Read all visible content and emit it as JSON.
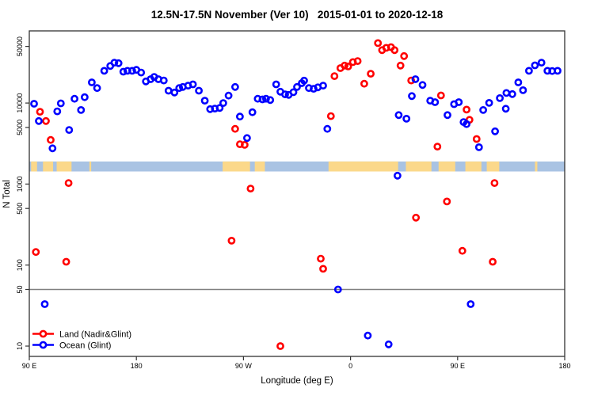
{
  "title": "12.5N-17.5N November (Ver 10)   2015-01-01 to 2020-12-18",
  "legend": {
    "items": [
      {
        "label": "Land (Nadir&Glint)",
        "color": "#ff0000",
        "icon": "open-circle-on-line"
      },
      {
        "label": "Ocean (Glint)",
        "color": "#0000ff",
        "icon": "open-circle-on-line"
      }
    ]
  },
  "colors": {
    "land_series": "#ff0000",
    "ocean_series": "#0000ff",
    "map_ocean": "#a9c3e3",
    "map_land": "#fbd88a",
    "reference_line": "#808080",
    "axis": "#000000"
  },
  "chart_data": {
    "type": "scatter",
    "title": "12.5N-17.5N November (Ver 10)   2015-01-01 to 2020-12-18",
    "xlabel": "Longitude (deg E)",
    "ylabel": "N Total",
    "x_axis": {
      "range_deg_east_continuous": [
        90,
        540
      ],
      "ticks": [
        90,
        180,
        270,
        360,
        450,
        540
      ],
      "tick_labels": [
        "90 E",
        "180",
        "90 W",
        "0",
        "90 E",
        "180"
      ]
    },
    "y_axis": {
      "scale": "log10",
      "range": [
        7.5,
        77000
      ],
      "ticks": [
        10,
        50,
        100,
        500,
        1000,
        5000,
        10000,
        50000
      ],
      "tick_labels": [
        "10",
        "50",
        "100",
        "500",
        "1000",
        "5000",
        "10000",
        "50000"
      ]
    },
    "reference_line_y": 50,
    "grid": "off",
    "legend_position": "bottom-left-inside",
    "map_strip": {
      "description": "thin world-map band at the 12.5N-17.5N latitude zone",
      "value_top": 1900,
      "value_bottom": 1430,
      "land_segments_deg": [
        [
          91.5,
          96.5
        ],
        [
          101.5,
          110
        ],
        [
          113,
          125.5
        ],
        [
          140.5,
          142
        ],
        [
          252.5,
          275.5
        ],
        [
          279.5,
          288
        ],
        [
          341.5,
          400
        ],
        [
          406.5,
          428
        ],
        [
          434,
          448
        ],
        [
          456.5,
          470
        ],
        [
          474.5,
          485
        ],
        [
          515,
          517
        ]
      ]
    },
    "series": [
      {
        "name": "Land (Nadir&Glint)",
        "color": "#ff0000",
        "points": [
          [
            95.5,
            145
          ],
          [
            99,
            7800
          ],
          [
            104,
            6000
          ],
          [
            108,
            3500
          ],
          [
            121,
            110
          ],
          [
            123,
            1030
          ],
          [
            260,
            200
          ],
          [
            263,
            4800
          ],
          [
            267,
            3100
          ],
          [
            271,
            3050
          ],
          [
            276,
            880
          ],
          [
            301,
            10
          ],
          [
            335,
            120
          ],
          [
            337,
            90
          ],
          [
            343.5,
            6900
          ],
          [
            346.5,
            21500
          ],
          [
            351.5,
            27000
          ],
          [
            355,
            29000
          ],
          [
            358,
            28300
          ],
          [
            362,
            32000
          ],
          [
            366,
            33000
          ],
          [
            371.5,
            17300
          ],
          [
            377,
            23000
          ],
          [
            383,
            55000
          ],
          [
            386.5,
            45000
          ],
          [
            390,
            48000
          ],
          [
            394,
            49000
          ],
          [
            397,
            45000
          ],
          [
            402,
            29000
          ],
          [
            405,
            38000
          ],
          [
            411,
            19000
          ],
          [
            415,
            385
          ],
          [
            433,
            2900
          ],
          [
            436,
            12400
          ],
          [
            441,
            610
          ],
          [
            454,
            150
          ],
          [
            457.5,
            8300
          ],
          [
            460,
            6200
          ],
          [
            466,
            3600
          ],
          [
            479.5,
            110
          ],
          [
            481,
            1030
          ]
        ]
      },
      {
        "name": "Ocean (Glint)",
        "color": "#0000ff",
        "points": [
          [
            94,
            9800
          ],
          [
            98,
            6000
          ],
          [
            103,
            33
          ],
          [
            109.5,
            2760
          ],
          [
            113.5,
            7900
          ],
          [
            116.5,
            9900
          ],
          [
            123.5,
            4650
          ],
          [
            128,
            11300
          ],
          [
            133.5,
            8200
          ],
          [
            136.5,
            11800
          ],
          [
            142.5,
            18000
          ],
          [
            147,
            15300
          ],
          [
            153,
            25000
          ],
          [
            158,
            28700
          ],
          [
            161.5,
            31500
          ],
          [
            165,
            31000
          ],
          [
            169,
            24400
          ],
          [
            172.5,
            25000
          ],
          [
            176.5,
            25000
          ],
          [
            180,
            25700
          ],
          [
            184,
            23800
          ],
          [
            188,
            18500
          ],
          [
            192,
            19700
          ],
          [
            195,
            21000
          ],
          [
            198.5,
            19700
          ],
          [
            203,
            19000
          ],
          [
            207,
            14200
          ],
          [
            212,
            13500
          ],
          [
            216,
            15300
          ],
          [
            219,
            15800
          ],
          [
            223.5,
            16400
          ],
          [
            227.5,
            17000
          ],
          [
            232.5,
            14200
          ],
          [
            237.5,
            10700
          ],
          [
            242,
            8400
          ],
          [
            246,
            8550
          ],
          [
            250,
            8700
          ],
          [
            253,
            10000
          ],
          [
            257.5,
            12350
          ],
          [
            263,
            15800
          ],
          [
            267,
            6800
          ],
          [
            273,
            3700
          ],
          [
            277.5,
            7700
          ],
          [
            282,
            11300
          ],
          [
            286,
            11100
          ],
          [
            289,
            11300
          ],
          [
            292.5,
            10900
          ],
          [
            297.5,
            17000
          ],
          [
            301,
            13800
          ],
          [
            305,
            12800
          ],
          [
            308,
            12600
          ],
          [
            312,
            13600
          ],
          [
            315,
            15800
          ],
          [
            319,
            17600
          ],
          [
            321,
            18900
          ],
          [
            325,
            15300
          ],
          [
            329,
            15000
          ],
          [
            332.5,
            15600
          ],
          [
            337,
            16400
          ],
          [
            340.5,
            4800
          ],
          [
            349.5,
            50
          ],
          [
            374.5,
            13.5
          ],
          [
            392,
            10.5
          ],
          [
            399.5,
            1270
          ],
          [
            400.5,
            7100
          ],
          [
            407,
            6400
          ],
          [
            411.5,
            12200
          ],
          [
            414.5,
            19700
          ],
          [
            420.5,
            16700
          ],
          [
            427,
            10700
          ],
          [
            431,
            10250
          ],
          [
            441.5,
            7100
          ],
          [
            447,
            9700
          ],
          [
            451,
            10250
          ],
          [
            455,
            5830
          ],
          [
            457.5,
            5500
          ],
          [
            461,
            33
          ],
          [
            468,
            2850
          ],
          [
            471.5,
            8200
          ],
          [
            476.5,
            10050
          ],
          [
            481.5,
            4480
          ],
          [
            485.5,
            11500
          ],
          [
            490.5,
            8500
          ],
          [
            491,
            13300
          ],
          [
            496,
            12900
          ],
          [
            501,
            18000
          ],
          [
            505,
            14400
          ],
          [
            510,
            25000
          ],
          [
            515,
            29200
          ],
          [
            520.5,
            31500
          ],
          [
            525.5,
            25000
          ],
          [
            529.5,
            24800
          ],
          [
            534,
            25000
          ]
        ]
      }
    ]
  }
}
